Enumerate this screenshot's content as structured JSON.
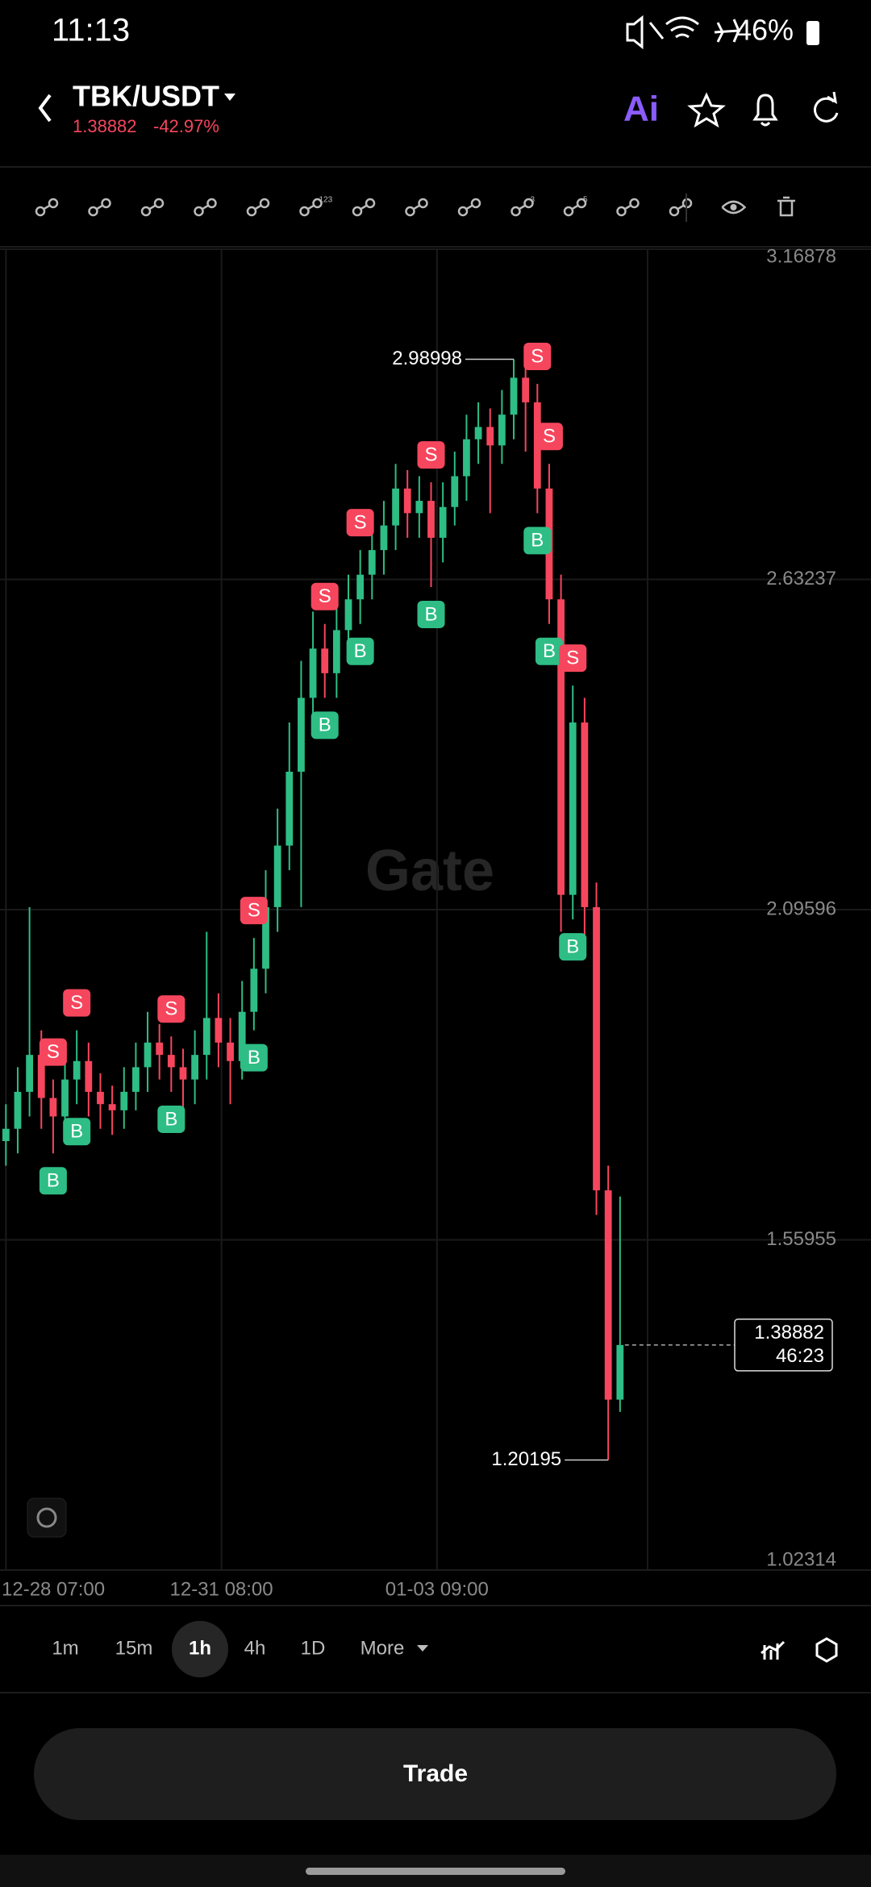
{
  "status_bar": {
    "time": "11:13",
    "battery": "46%"
  },
  "header": {
    "pair": "TBK/USDT",
    "price": "1.38882",
    "change": "-42.97%",
    "ai_label": "Ai"
  },
  "toolbar_badges": [
    "123",
    "3",
    "5"
  ],
  "chart_data": {
    "type": "candlestick",
    "x": [
      0,
      4,
      8,
      12,
      16,
      20,
      24,
      28,
      32,
      36,
      40,
      44,
      48,
      52,
      56,
      60,
      64,
      68,
      72,
      76,
      80,
      84,
      88,
      92,
      96,
      100,
      104,
      108,
      112,
      116,
      120,
      124,
      128,
      132,
      136,
      140,
      144,
      148,
      152,
      156,
      160,
      164,
      168,
      172,
      176,
      180,
      184,
      188,
      192,
      196,
      200,
      204,
      208
    ],
    "open": [
      1.72,
      1.74,
      1.8,
      1.86,
      1.79,
      1.76,
      1.82,
      1.85,
      1.8,
      1.78,
      1.77,
      1.8,
      1.84,
      1.88,
      1.86,
      1.84,
      1.82,
      1.86,
      1.92,
      1.88,
      1.85,
      1.93,
      2.0,
      2.1,
      2.2,
      2.32,
      2.44,
      2.52,
      2.48,
      2.55,
      2.6,
      2.64,
      2.68,
      2.72,
      2.78,
      2.74,
      2.76,
      2.7,
      2.75,
      2.8,
      2.86,
      2.88,
      2.85,
      2.9,
      2.96,
      2.92,
      2.78,
      2.6,
      2.12,
      2.4,
      2.1,
      1.64,
      1.3
    ],
    "high": [
      1.78,
      1.84,
      2.1,
      1.9,
      1.82,
      1.86,
      1.9,
      1.88,
      1.83,
      1.81,
      1.84,
      1.88,
      1.93,
      1.91,
      1.89,
      1.87,
      1.9,
      2.06,
      1.96,
      1.92,
      1.98,
      2.05,
      2.16,
      2.26,
      2.4,
      2.5,
      2.58,
      2.56,
      2.6,
      2.64,
      2.68,
      2.72,
      2.76,
      2.82,
      2.81,
      2.8,
      2.79,
      2.79,
      2.84,
      2.9,
      2.92,
      2.91,
      2.94,
      2.98998,
      2.98,
      2.95,
      2.82,
      2.64,
      2.46,
      2.44,
      2.14,
      1.68,
      1.63
    ],
    "low": [
      1.68,
      1.7,
      1.76,
      1.74,
      1.7,
      1.72,
      1.78,
      1.76,
      1.74,
      1.73,
      1.74,
      1.77,
      1.8,
      1.82,
      1.8,
      1.76,
      1.78,
      1.82,
      1.84,
      1.78,
      1.82,
      1.9,
      1.96,
      2.06,
      2.16,
      2.1,
      2.4,
      2.44,
      2.44,
      2.5,
      2.56,
      2.6,
      2.64,
      2.68,
      2.7,
      2.7,
      2.62,
      2.66,
      2.72,
      2.76,
      2.82,
      2.74,
      2.82,
      2.86,
      2.84,
      2.74,
      2.56,
      2.06,
      2.08,
      2.04,
      1.6,
      1.20195,
      1.28
    ],
    "close": [
      1.74,
      1.8,
      1.86,
      1.79,
      1.76,
      1.82,
      1.85,
      1.8,
      1.78,
      1.77,
      1.8,
      1.84,
      1.88,
      1.86,
      1.84,
      1.82,
      1.86,
      1.92,
      1.88,
      1.85,
      1.93,
      2.0,
      2.1,
      2.2,
      2.32,
      2.44,
      2.52,
      2.48,
      2.55,
      2.6,
      2.64,
      2.68,
      2.72,
      2.78,
      2.74,
      2.76,
      2.7,
      2.75,
      2.8,
      2.86,
      2.88,
      2.85,
      2.9,
      2.96,
      2.92,
      2.78,
      2.6,
      2.12,
      2.4,
      2.1,
      1.64,
      1.3,
      1.38882
    ],
    "xlim": [
      -2,
      293
    ],
    "ylim": [
      1.02314,
      3.16878
    ],
    "yticks": [
      1.02314,
      1.55955,
      2.09596,
      2.63237,
      3.16878
    ],
    "xticks": [
      {
        "value": 0,
        "label": "12-28 07:00"
      },
      {
        "value": 73,
        "label": "12-31 08:00"
      },
      {
        "value": 146,
        "label": "01-03 09:00"
      }
    ],
    "grid": true,
    "up_color": "#2ebd85",
    "down_color": "#f6465d",
    "countdown": "46:23",
    "watermark": "Gate",
    "signals": [
      {
        "x": 16,
        "label": "S"
      },
      {
        "x": 16,
        "label": "B"
      },
      {
        "x": 24,
        "label": "S"
      },
      {
        "x": 24,
        "label": "B"
      },
      {
        "x": 56,
        "label": "S"
      },
      {
        "x": 56,
        "label": "B"
      },
      {
        "x": 84,
        "label": "S"
      },
      {
        "x": 84,
        "label": "B"
      },
      {
        "x": 108,
        "label": "S"
      },
      {
        "x": 108,
        "label": "B"
      },
      {
        "x": 120,
        "label": "S"
      },
      {
        "x": 120,
        "label": "B"
      },
      {
        "x": 144,
        "label": "S"
      },
      {
        "x": 144,
        "label": "B"
      },
      {
        "x": 180,
        "label": "S"
      },
      {
        "x": 180,
        "label": "B"
      },
      {
        "x": 184,
        "label": "S"
      },
      {
        "x": 184,
        "label": "B"
      },
      {
        "x": 192,
        "label": "S"
      },
      {
        "x": 192,
        "label": "B"
      }
    ]
  },
  "intervals": [
    "1m",
    "15m",
    "1h",
    "4h",
    "1D",
    "More"
  ],
  "trade_button": "Trade"
}
